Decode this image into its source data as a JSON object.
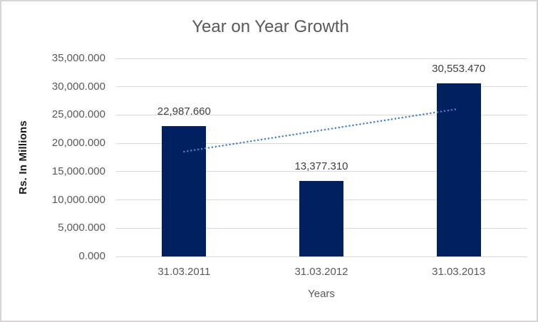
{
  "chart_data": {
    "type": "bar",
    "title": "Year on Year Growth",
    "xlabel": "Years",
    "ylabel": "Rs. In Millions",
    "categories": [
      "31.03.2011",
      "31.03.2012",
      "31.03.2013"
    ],
    "values": [
      22987.66,
      13377.31,
      30553.47
    ],
    "value_labels": [
      "22,987.660",
      "13,377.310",
      "30,553.470"
    ],
    "y_ticks": [
      0,
      5000,
      10000,
      15000,
      20000,
      25000,
      30000,
      35000
    ],
    "y_tick_labels": [
      "0.000",
      "5,000.000",
      "10,000.000",
      "15,000.000",
      "20,000.000",
      "25,000.000",
      "30,000.000",
      "35,000.000"
    ],
    "ylim": [
      0,
      35000
    ],
    "grid": "horizontal",
    "legend": "none",
    "trendline": {
      "type": "linear",
      "style": "dotted"
    },
    "colors": {
      "bar": "#002060",
      "trendline": "#4a80c4",
      "gridline": "#d9d9d9",
      "axis_text": "#595959",
      "value_label_text": "#404040",
      "title_text": "#595959",
      "border": "#d7d5d5",
      "background": "#ffffff"
    }
  }
}
